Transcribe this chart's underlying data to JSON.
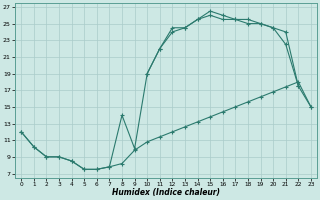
{
  "xlabel": "Humidex (Indice chaleur)",
  "bg_color": "#cde8e4",
  "grid_color": "#aaccca",
  "line_color": "#2b7a6e",
  "xlim": [
    -0.5,
    23.5
  ],
  "ylim": [
    6.5,
    27.5
  ],
  "xticks": [
    0,
    1,
    2,
    3,
    4,
    5,
    6,
    7,
    8,
    9,
    10,
    11,
    12,
    13,
    14,
    15,
    16,
    17,
    18,
    19,
    20,
    21,
    22,
    23
  ],
  "yticks": [
    7,
    9,
    11,
    13,
    15,
    17,
    19,
    21,
    23,
    25,
    27
  ],
  "curve_a_x": [
    0,
    1,
    2,
    3,
    4,
    5,
    6,
    7,
    8,
    9,
    10,
    11,
    12,
    13,
    14,
    15,
    16,
    17,
    18,
    19,
    20,
    21,
    22,
    23
  ],
  "curve_a_y": [
    12.0,
    10.2,
    9.0,
    9.0,
    8.5,
    7.5,
    7.5,
    7.8,
    8.2,
    9.8,
    10.8,
    11.4,
    12.0,
    12.6,
    13.2,
    13.8,
    14.4,
    15.0,
    15.6,
    16.2,
    16.8,
    17.4,
    18.0,
    15.0
  ],
  "curve_b_x": [
    0,
    1,
    2,
    3,
    4,
    5,
    6,
    7,
    8,
    9,
    10,
    11,
    12,
    13,
    14,
    15,
    16,
    17,
    18,
    19,
    20,
    21,
    22
  ],
  "curve_b_y": [
    12.0,
    10.2,
    9.0,
    9.0,
    8.5,
    7.5,
    7.5,
    7.8,
    14.0,
    10.0,
    19.0,
    22.0,
    24.5,
    24.5,
    25.5,
    26.5,
    26.0,
    25.5,
    25.5,
    25.0,
    24.5,
    22.5,
    17.5
  ],
  "curve_c_x": [
    10,
    11,
    12,
    13,
    14,
    15,
    16,
    17,
    18,
    19,
    20,
    21,
    22,
    23
  ],
  "curve_c_y": [
    19.0,
    22.0,
    24.0,
    24.5,
    25.5,
    26.0,
    25.5,
    25.5,
    25.0,
    25.0,
    24.5,
    24.0,
    17.5,
    15.0
  ]
}
